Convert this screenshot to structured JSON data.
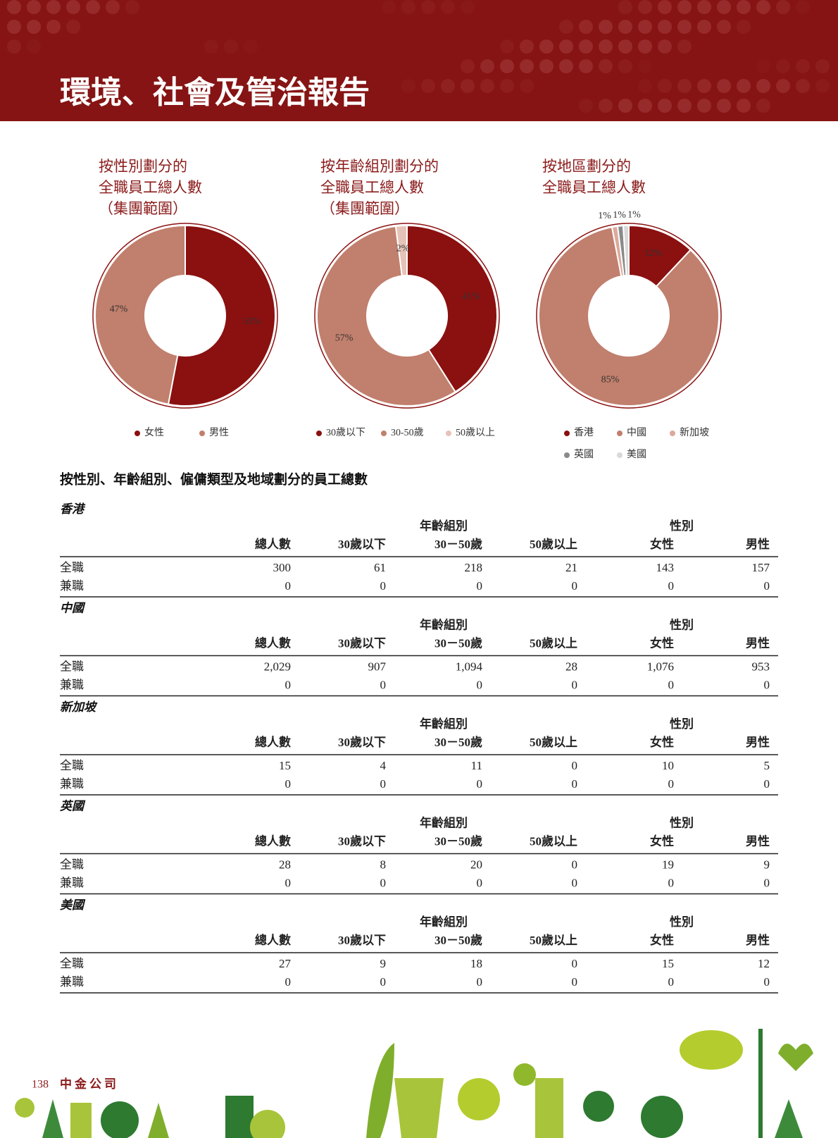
{
  "header": {
    "title": "環境、社會及管治報告"
  },
  "chart_data": [
    {
      "type": "pie",
      "title": [
        "按性別劃分的",
        "全職員工總人數",
        "（集團範圍）"
      ],
      "categories": [
        "女性",
        "男性"
      ],
      "values": [
        53,
        47
      ],
      "value_labels": [
        "53%",
        "47%"
      ],
      "colors": [
        "#8b1010",
        "#c17f6d"
      ]
    },
    {
      "type": "pie",
      "title": [
        "按年齡組別劃分的",
        "全職員工總人數",
        "（集團範圍）"
      ],
      "categories": [
        "30歲以下",
        "30-50歲",
        "50歲以上"
      ],
      "values": [
        41,
        57,
        2
      ],
      "value_labels": [
        "41%",
        "57%",
        "2%"
      ],
      "colors": [
        "#8b1010",
        "#c17f6d",
        "#e6c3b8"
      ]
    },
    {
      "type": "pie",
      "title": [
        "按地區劃分的",
        "全職員工總人數"
      ],
      "categories": [
        "香港",
        "中國",
        "新加坡",
        "英國",
        "美國"
      ],
      "values": [
        12,
        85,
        1,
        1,
        1
      ],
      "value_labels": [
        "12%",
        "85%",
        "1%",
        "1%",
        "1%"
      ],
      "colors": [
        "#8b1010",
        "#c17f6d",
        "#dba99b",
        "#8a8a8a",
        "#d9d9d9"
      ]
    }
  ],
  "table": {
    "title": "按性別、年齡組別、僱傭類型及地域劃分的員工總數",
    "group_headers": [
      "年齡組別",
      "性別"
    ],
    "columns": [
      "總人數",
      "30歲以下",
      "30－50歲",
      "50歲以上",
      "女性",
      "男性"
    ],
    "sections": [
      {
        "region": "香港",
        "rows": [
          [
            "全職",
            "300",
            "61",
            "218",
            "21",
            "143",
            "157"
          ],
          [
            "兼職",
            "0",
            "0",
            "0",
            "0",
            "0",
            "0"
          ]
        ]
      },
      {
        "region": "中國",
        "rows": [
          [
            "全職",
            "2,029",
            "907",
            "1,094",
            "28",
            "1,076",
            "953"
          ],
          [
            "兼職",
            "0",
            "0",
            "0",
            "0",
            "0",
            "0"
          ]
        ]
      },
      {
        "region": "新加坡",
        "rows": [
          [
            "全職",
            "15",
            "4",
            "11",
            "0",
            "10",
            "5"
          ],
          [
            "兼職",
            "0",
            "0",
            "0",
            "0",
            "0",
            "0"
          ]
        ]
      },
      {
        "region": "英國",
        "rows": [
          [
            "全職",
            "28",
            "8",
            "20",
            "0",
            "19",
            "9"
          ],
          [
            "兼職",
            "0",
            "0",
            "0",
            "0",
            "0",
            "0"
          ]
        ]
      },
      {
        "region": "美國",
        "rows": [
          [
            "全職",
            "27",
            "9",
            "18",
            "0",
            "15",
            "12"
          ],
          [
            "兼職",
            "0",
            "0",
            "0",
            "0",
            "0",
            "0"
          ]
        ]
      }
    ]
  },
  "footer": {
    "page": "138",
    "company": "中金公司"
  }
}
